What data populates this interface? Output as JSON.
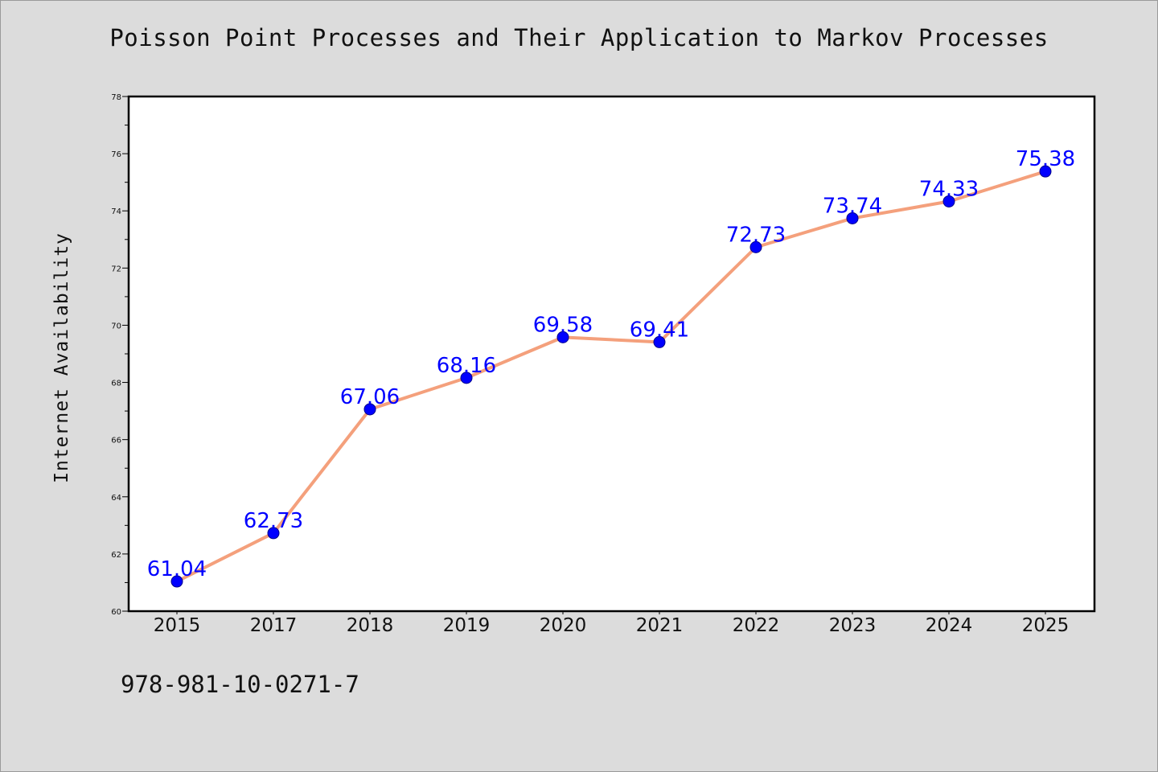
{
  "footer": {
    "code": "978-981-10-0271-7"
  },
  "colors": {
    "line": "#f4a07c",
    "marker": "#0000ff",
    "label": "#0000ff",
    "background": "#dcdcdc",
    "plot_bg": "#ffffff"
  },
  "chart_data": {
    "type": "line",
    "title": "Poisson Point Processes and Their Application to Markov Processes",
    "xlabel": "",
    "ylabel": "Internet Availability",
    "categories": [
      "2015",
      "2017",
      "2018",
      "2019",
      "2020",
      "2021",
      "2022",
      "2023",
      "2024",
      "2025"
    ],
    "values": [
      61.04,
      62.73,
      67.06,
      68.16,
      69.58,
      69.41,
      72.73,
      73.74,
      74.33,
      75.38
    ],
    "data_labels": [
      "61.04",
      "62.73",
      "67.06",
      "68.16",
      "69.58",
      "69.41",
      "72.73",
      "73.74",
      "74.33",
      "75.38"
    ],
    "ylim": [
      60,
      78
    ],
    "y_ticks": [
      60,
      62,
      64,
      66,
      68,
      70,
      72,
      74,
      76,
      78
    ],
    "grid": false,
    "legend": "none"
  }
}
